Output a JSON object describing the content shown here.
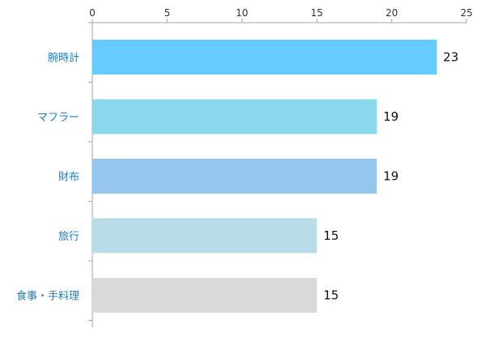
{
  "chart_data": {
    "type": "bar",
    "orientation": "horizontal",
    "categories": [
      "腕時計",
      "マフラー",
      "財布",
      "旅行",
      "食事・手料理"
    ],
    "values": [
      23,
      19,
      19,
      15,
      15
    ],
    "data_labels": [
      "23",
      "19",
      "19",
      "15",
      "15"
    ],
    "bar_colors": [
      "#66ccff",
      "#8ad8ec",
      "#94c6ee",
      "#b8dde9",
      "#d9d9d9"
    ],
    "axis_color": "#a6a6a6",
    "category_label_color": "#1f7fc4",
    "title": "",
    "xlabel": "",
    "ylabel": "",
    "xlim": [
      0,
      25
    ],
    "x_ticks": [
      0,
      5,
      10,
      15,
      20,
      25
    ],
    "x_tick_labels": [
      "0",
      "5",
      "10",
      "15",
      "20",
      "25"
    ],
    "x_axis_position": "top",
    "grid": false,
    "legend": "none"
  }
}
